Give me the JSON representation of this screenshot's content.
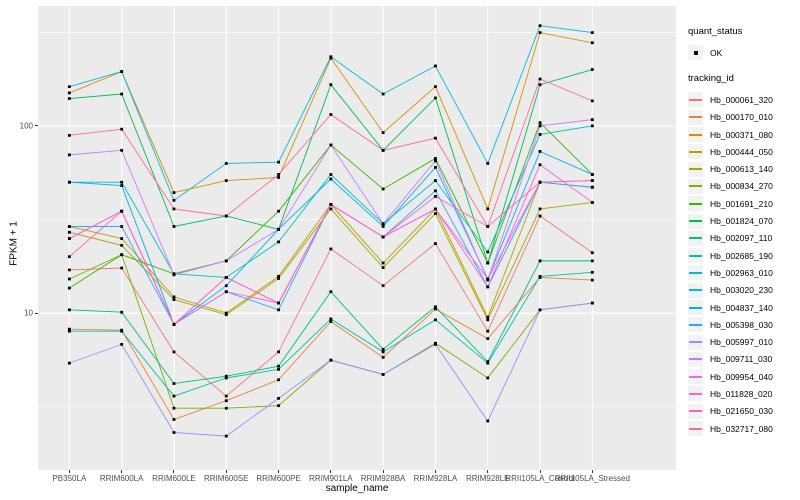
{
  "axes": {
    "ylabel": "FPKM + 1",
    "xlabel": "sample_name",
    "y_tick_labels": [
      "100",
      "10"
    ]
  },
  "legend": {
    "quant_status_title": "quant_status",
    "quant_status_ok_label": "OK",
    "tracking_id_title": "tracking_id"
  },
  "colors": {
    "panel_bg": "#EBEBEB",
    "grid": "#FFFFFF",
    "tick_text": "#4D4D4D",
    "point": "#000000",
    "legend_key_bg": "#F2F2F2"
  },
  "chart_data": {
    "type": "line",
    "title": "",
    "xlabel": "sample_name",
    "ylabel": "FPKM + 1",
    "y_scale": "log10",
    "y_major_ticks": [
      10,
      100
    ],
    "y_minor_ticks": [
      3.162,
      31.62,
      316.2
    ],
    "ylim": [
      1.45,
      437
    ],
    "grid": true,
    "legend_position": "right",
    "point_shape": "small-black-square",
    "categories": [
      "PB350LA",
      "RRIM600LA",
      "RRIM600LE",
      "RRIM600SE",
      "RRIM600PE",
      "RRIM901LA",
      "RRIM928BA",
      "RRIM928LA",
      "RRIM928LE",
      "RRII105LA_Control",
      "RRII105LA_Stressed"
    ],
    "series": [
      {
        "name": "Hb_000061_320",
        "color": "#F8766D",
        "values": [
          17,
          17.4,
          6.2,
          3.6,
          6.2,
          22,
          14,
          23.5,
          8,
          33,
          21
        ]
      },
      {
        "name": "Hb_000170_010",
        "color": "#EA8331",
        "values": [
          8.2,
          8.1,
          2.7,
          3.4,
          4.4,
          9.0,
          5.8,
          10.5,
          7.3,
          15.5,
          15
        ]
      },
      {
        "name": "Hb_000371_080",
        "color": "#D89000",
        "values": [
          150,
          195,
          44,
          51,
          53,
          230,
          92,
          162,
          36,
          315,
          278
        ]
      },
      {
        "name": "Hb_000444_050",
        "color": "#C09B00",
        "values": [
          29,
          25,
          12.2,
          10,
          15.7,
          38,
          18.5,
          36,
          9.5,
          50,
          47
        ]
      },
      {
        "name": "Hb_000613_140",
        "color": "#A3A500",
        "values": [
          27,
          23,
          11.8,
          9.8,
          15.3,
          36,
          17.5,
          34,
          9.2,
          36,
          39
        ]
      },
      {
        "name": "Hb_000834_270",
        "color": "#7CAE00",
        "values": [
          15.2,
          20.5,
          3.1,
          3.1,
          3.2,
          5.6,
          4.7,
          6.9,
          4.5,
          10.4,
          11.3
        ]
      },
      {
        "name": "Hb_001691_210",
        "color": "#39B600",
        "values": [
          13.6,
          20.5,
          16.2,
          19,
          35,
          79,
          46,
          67,
          18.5,
          104,
          55
        ]
      },
      {
        "name": "Hb_001824_070",
        "color": "#00BB4E",
        "values": [
          140,
          148,
          29,
          33,
          28,
          166,
          74,
          141,
          18.5,
          166,
          200
        ]
      },
      {
        "name": "Hb_002097_110",
        "color": "#00BF7D",
        "values": [
          10.4,
          10.1,
          4.2,
          4.6,
          5.2,
          13,
          6.4,
          10.8,
          5.5,
          19,
          19
        ]
      },
      {
        "name": "Hb_002685_190",
        "color": "#00C1A3",
        "values": [
          8.0,
          8.0,
          3.6,
          4.5,
          5.0,
          9.3,
          6.2,
          9.2,
          5.4,
          15.7,
          16.5
        ]
      },
      {
        "name": "Hb_002963_010",
        "color": "#00BFC4",
        "values": [
          50,
          50,
          16.2,
          15.5,
          24,
          55,
          30,
          51,
          21.2,
          90,
          100
        ]
      },
      {
        "name": "Hb_003020_230",
        "color": "#00BAE0",
        "values": [
          162,
          195,
          40,
          63,
          64,
          234,
          148,
          209,
          63,
          343,
          315
        ]
      },
      {
        "name": "Hb_004837_140",
        "color": "#00B0F6",
        "values": [
          50,
          48,
          8.7,
          14,
          28,
          52,
          29,
          60,
          15.2,
          73,
          55
        ]
      },
      {
        "name": "Hb_005398_030",
        "color": "#35A2FF",
        "values": [
          29,
          29,
          8.7,
          13,
          10.4,
          38,
          25.5,
          45,
          13.8,
          50,
          47
        ]
      },
      {
        "name": "Hb_005997_010",
        "color": "#9590FF",
        "values": [
          5.4,
          6.8,
          2.3,
          2.2,
          3.5,
          5.6,
          4.7,
          6.8,
          2.65,
          10.4,
          11.3
        ]
      },
      {
        "name": "Hb_009711_030",
        "color": "#C77CFF",
        "values": [
          70,
          74,
          16.0,
          19,
          28,
          79,
          30,
          65,
          15.0,
          100,
          108
        ]
      },
      {
        "name": "Hb_009954_040",
        "color": "#E76BF3",
        "values": [
          25,
          35,
          8.7,
          15.5,
          11.3,
          38,
          25.5,
          36,
          15.2,
          50,
          51
        ]
      },
      {
        "name": "Hb_011828_020",
        "color": "#FA62DB",
        "values": [
          25,
          35,
          8.7,
          13,
          11.3,
          38,
          25.5,
          36,
          13.8,
          62,
          39
        ]
      },
      {
        "name": "Hb_021650_030",
        "color": "#FF62BC",
        "values": [
          20,
          35,
          8.7,
          15.5,
          11.3,
          38,
          25.5,
          42,
          29,
          50,
          51
        ]
      },
      {
        "name": "Hb_032717_080",
        "color": "#FF6A98",
        "values": [
          89,
          96,
          36,
          33,
          55,
          115,
          74,
          86,
          29,
          178,
          136
        ]
      }
    ]
  }
}
